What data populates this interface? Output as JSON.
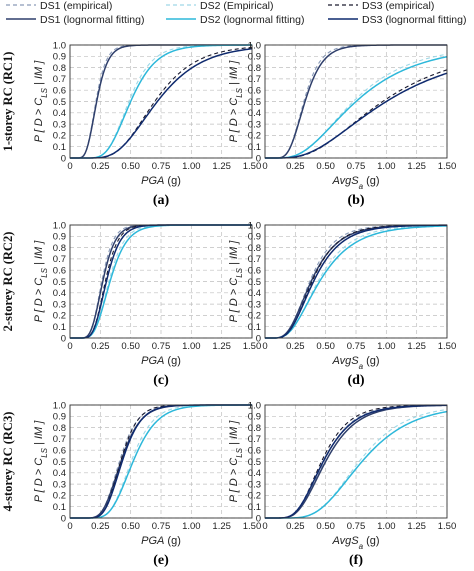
{
  "colors": {
    "ds1": "#2f3f6b",
    "ds2": "#2db8da",
    "ds3": "#0f2a6e",
    "grid": "#bfbfbf"
  },
  "legend": [
    {
      "label": "DS1 (empirical)",
      "color": "#8a9bb8",
      "dash": true
    },
    {
      "label": "DS2 (Empirical)",
      "color": "#9fd8e6",
      "dash": true
    },
    {
      "label": "DS3 (empirical)",
      "color": "#1a1a2e",
      "dash": true
    },
    {
      "label": "DS1 (lognormal fitting)",
      "color": "#2f3f6b",
      "dash": false
    },
    {
      "label": "DS2 (lognormal fitting)",
      "color": "#2db8da",
      "dash": false
    },
    {
      "label": "DS3 (lognormal fitting)",
      "color": "#0f2a6e",
      "dash": false
    }
  ],
  "row_labels": [
    "1-storey RC (RC1)",
    "2-storey RC (RC2)",
    "4-storey RC (RC3)"
  ],
  "ylabel": "P [ D > C | IM ]",
  "ylabel_sub": "LS",
  "chart_data": [
    {
      "type": "line",
      "panel": "(a)",
      "xlabel": "PGA (g)",
      "xlim": [
        0,
        1.5
      ],
      "ylim": [
        0,
        1
      ],
      "xticks": [
        "0",
        "0.25",
        "0.50",
        "0.75",
        "1.00",
        "1.25",
        "1.50"
      ],
      "yticks": [
        "0",
        "0.1",
        "0.2",
        "0.3",
        "0.4",
        "0.5",
        "0.6",
        "0.7",
        "0.8",
        "0.9",
        "1.0"
      ],
      "series": [
        {
          "curve": "DS1 (lognormal fitting)",
          "median": 0.22,
          "beta": 0.33
        },
        {
          "curve": "DS2 (lognormal fitting)",
          "median": 0.5,
          "beta": 0.33
        },
        {
          "curve": "DS3 (lognormal fitting)",
          "median": 0.72,
          "beta": 0.4
        }
      ]
    },
    {
      "type": "line",
      "panel": "(b)",
      "xlabel": "AvgSa (g)",
      "xlim": [
        0,
        1.5
      ],
      "ylim": [
        0,
        1
      ],
      "xticks": [
        "0",
        "0.25",
        "0.50",
        "0.75",
        "1.00",
        "1.25",
        "1.50"
      ],
      "yticks": [
        "0",
        "0.1",
        "0.2",
        "0.3",
        "0.4",
        "0.5",
        "0.6",
        "0.7",
        "0.8",
        "0.9",
        "1.0"
      ],
      "series": [
        {
          "curve": "DS1 (lognormal fitting)",
          "median": 0.33,
          "beta": 0.35
        },
        {
          "curve": "DS2 (lognormal fitting)",
          "median": 0.75,
          "beta": 0.55
        },
        {
          "curve": "DS3 (lognormal fitting)",
          "median": 1.0,
          "beta": 0.6
        }
      ]
    },
    {
      "type": "line",
      "panel": "(c)",
      "xlabel": "PGA (g)",
      "xlim": [
        0,
        1.5
      ],
      "ylim": [
        0,
        1
      ],
      "xticks": [
        "0",
        "0.25",
        "0.50",
        "0.75",
        "1.00",
        "1.25",
        "1.50"
      ],
      "yticks": [
        "0",
        "0.1",
        "0.2",
        "0.3",
        "0.4",
        "0.5",
        "0.6",
        "0.7",
        "0.8",
        "0.9",
        "1.0"
      ],
      "series": [
        {
          "curve": "DS1 (lognormal fitting)",
          "median": 0.27,
          "beta": 0.3
        },
        {
          "curve": "DS2 (lognormal fitting)",
          "median": 0.33,
          "beta": 0.33
        },
        {
          "curve": "DS3 (lognormal fitting)",
          "median": 0.3,
          "beta": 0.3
        }
      ]
    },
    {
      "type": "line",
      "panel": "(d)",
      "xlabel": "AvgSa (g)",
      "xlim": [
        0,
        1.5
      ],
      "ylim": [
        0,
        1
      ],
      "xticks": [
        "0",
        "0.25",
        "0.50",
        "0.75",
        "1.00",
        "1.25",
        "1.50"
      ],
      "yticks": [
        "0",
        "0.1",
        "0.2",
        "0.3",
        "0.4",
        "0.5",
        "0.6",
        "0.7",
        "0.8",
        "0.9",
        "1.0"
      ],
      "series": [
        {
          "curve": "DS1 (lognormal fitting)",
          "median": 0.38,
          "beta": 0.45
        },
        {
          "curve": "DS2 (lognormal fitting)",
          "median": 0.45,
          "beta": 0.5
        },
        {
          "curve": "DS3 (lognormal fitting)",
          "median": 0.4,
          "beta": 0.45
        }
      ]
    },
    {
      "type": "line",
      "panel": "(e)",
      "xlabel": "PGA (g)",
      "xlim": [
        0,
        1.5
      ],
      "ylim": [
        0,
        1
      ],
      "xticks": [
        "0",
        "0.25",
        "0.50",
        "0.75",
        "1.00",
        "1.25",
        "1.50"
      ],
      "yticks": [
        "0",
        "0.1",
        "0.2",
        "0.3",
        "0.4",
        "0.5",
        "0.6",
        "0.7",
        "0.8",
        "0.9",
        "1.0"
      ],
      "series": [
        {
          "curve": "DS1 (lognormal fitting)",
          "median": 0.42,
          "beta": 0.3
        },
        {
          "curve": "DS2 (lognormal fitting)",
          "median": 0.52,
          "beta": 0.3
        },
        {
          "curve": "DS3 (lognormal fitting)",
          "median": 0.43,
          "beta": 0.28
        }
      ]
    },
    {
      "type": "line",
      "panel": "(f)",
      "xlabel": "AvgSa (g)",
      "xlim": [
        0,
        1.5
      ],
      "ylim": [
        0,
        1
      ],
      "xticks": [
        "0",
        "0.25",
        "0.50",
        "0.75",
        "1.00",
        "1.25",
        "1.50"
      ],
      "yticks": [
        "0",
        "0.1",
        "0.2",
        "0.3",
        "0.4",
        "0.5",
        "0.6",
        "0.7",
        "0.8",
        "0.9",
        "1.0"
      ],
      "series": [
        {
          "curve": "DS1 (lognormal fitting)",
          "median": 0.5,
          "beta": 0.4
        },
        {
          "curve": "DS2 (lognormal fitting)",
          "median": 0.8,
          "beta": 0.4
        },
        {
          "curve": "DS3 (lognormal fitting)",
          "median": 0.48,
          "beta": 0.4
        }
      ]
    }
  ]
}
